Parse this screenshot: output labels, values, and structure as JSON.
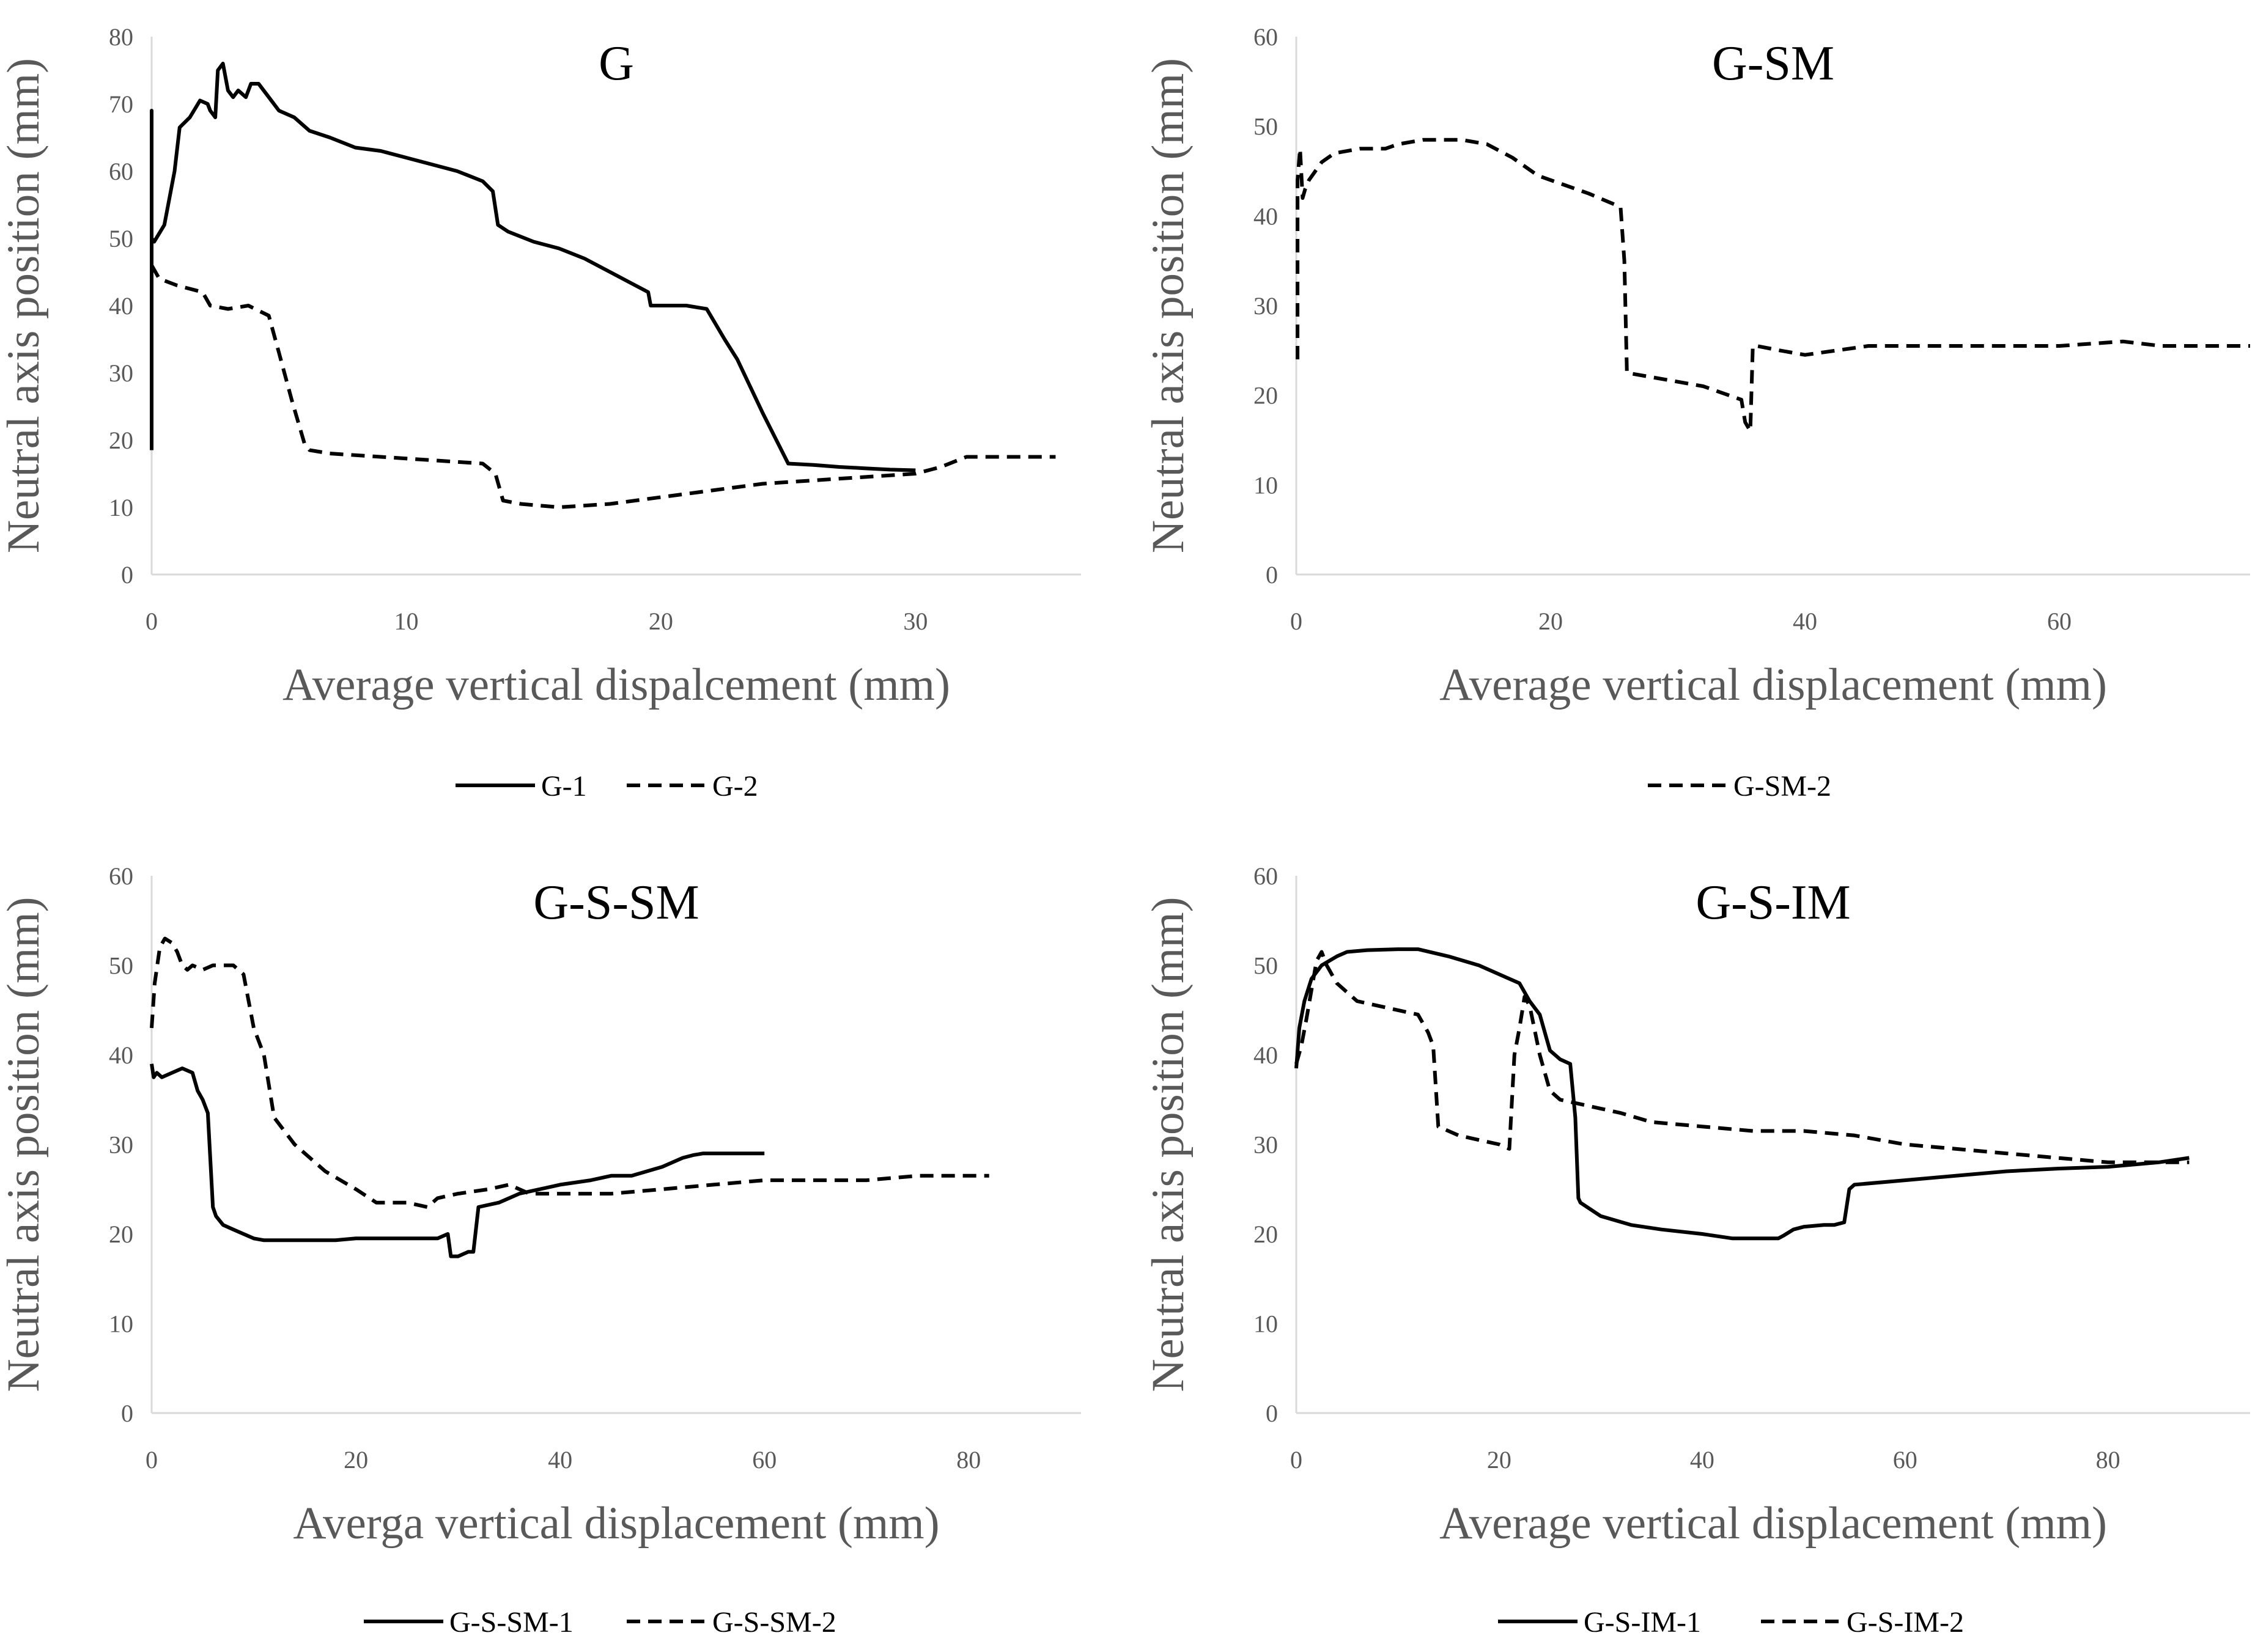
{
  "chart_data": [
    {
      "type": "line",
      "title": "G",
      "xlabel": "Average vertical dispalcement (mm)",
      "ylabel": "Neutral axis position (mm)",
      "xlim": [
        0,
        36.5
      ],
      "ylim": [
        0,
        80
      ],
      "xticks": [
        0,
        10,
        20,
        30
      ],
      "yticks": [
        0,
        10,
        20,
        30,
        40,
        50,
        60,
        70,
        80
      ],
      "grid": false,
      "legend": "bottom",
      "series": [
        {
          "name": "G-1",
          "style": "solid",
          "x": [
            0,
            0,
            0,
            0.1,
            0.5,
            0.9,
            1.1,
            1.5,
            1.9,
            2.2,
            2.3,
            2.5,
            2.6,
            2.8,
            3.0,
            3.2,
            3.4,
            3.7,
            3.9,
            4.2,
            4.6,
            5.0,
            5.6,
            6.2,
            7.0,
            8.0,
            9.0,
            10.0,
            11.0,
            12.0,
            13.0,
            13.4,
            13.6,
            14.0,
            15.0,
            16.0,
            17.0,
            18.0,
            19.0,
            19.5,
            19.6,
            20.0,
            21.0,
            21.8,
            22.5,
            23.0,
            24.0,
            25.0,
            26.0,
            27.0,
            28.0,
            29.0,
            30.0
          ],
          "y": [
            18.5,
            69,
            50,
            49.5,
            52,
            60,
            66.5,
            68,
            70.5,
            70,
            69,
            68,
            75,
            76,
            72,
            71,
            72,
            71,
            73,
            73,
            71,
            69,
            68,
            66,
            65,
            63.5,
            63,
            62,
            61,
            60,
            58.5,
            57,
            52,
            51,
            49.5,
            48.5,
            47,
            45,
            43,
            42,
            40,
            40,
            40,
            39.5,
            35,
            32,
            24,
            16.5,
            16.3,
            16,
            15.8,
            15.6,
            15.5
          ]
        },
        {
          "name": "G-2",
          "style": "dashed",
          "x": [
            0,
            0.3,
            1,
            2,
            2.3,
            3,
            3.8,
            4.6,
            5.0,
            5.5,
            6.0,
            6.2,
            7,
            9,
            11,
            13,
            13.5,
            13.8,
            14.5,
            16,
            18,
            20,
            22,
            24,
            26,
            28,
            30,
            31,
            32,
            35.5
          ],
          "y": [
            46,
            44,
            43,
            42,
            40,
            39.5,
            40,
            38.5,
            33,
            26,
            19.5,
            18.5,
            18,
            17.5,
            17,
            16.5,
            15,
            11,
            10.5,
            10,
            10.5,
            11.5,
            12.5,
            13.5,
            14,
            14.5,
            15,
            16,
            17.5,
            17.5
          ]
        }
      ]
    },
    {
      "type": "line",
      "title": "G-SM",
      "xlabel": "Average vertical displacement (mm)",
      "ylabel": "Neutral axis position (mm)",
      "xlim": [
        0,
        75
      ],
      "ylim": [
        0,
        60
      ],
      "xticks": [
        0,
        20,
        40,
        60
      ],
      "yticks": [
        0,
        10,
        20,
        30,
        40,
        50,
        60
      ],
      "grid": false,
      "legend": "bottom",
      "series": [
        {
          "name": "G-SM-2",
          "style": "dashed",
          "x": [
            0.1,
            0.1,
            0.3,
            0.5,
            0.7,
            1,
            2,
            3,
            5,
            7,
            8,
            10,
            13,
            15,
            17,
            19,
            21,
            23,
            25.5,
            25.8,
            26,
            28,
            32,
            35,
            35.3,
            35.7,
            35.9,
            36.2,
            38,
            40,
            45,
            50,
            55,
            60,
            65,
            68,
            75
          ],
          "y": [
            24,
            44,
            47.5,
            42,
            43,
            44,
            46,
            47,
            47.5,
            47.5,
            48,
            48.5,
            48.5,
            48,
            46.5,
            44.5,
            43.5,
            42.5,
            41,
            35,
            22.5,
            22,
            21,
            19.5,
            17,
            16,
            25.5,
            25.5,
            25,
            24.5,
            25.5,
            25.5,
            25.5,
            25.5,
            26,
            25.5,
            25.5
          ]
        }
      ]
    },
    {
      "type": "line",
      "title": "G-S-SM",
      "xlabel": "Averga vertical displacement (mm)",
      "ylabel": "Neutral axis position (mm)",
      "xlim": [
        0,
        91
      ],
      "ylim": [
        0,
        60
      ],
      "xticks": [
        0,
        20,
        40,
        60,
        80
      ],
      "yticks": [
        0,
        10,
        20,
        30,
        40,
        50,
        60
      ],
      "grid": false,
      "legend": "bottom",
      "series": [
        {
          "name": "G-S-SM-1",
          "style": "solid",
          "x": [
            0,
            0.2,
            0.5,
            1,
            2,
            3,
            4,
            4.5,
            5,
            5.5,
            6,
            6.3,
            7,
            8,
            9,
            10,
            11,
            12,
            15,
            18,
            20,
            25,
            28,
            29,
            29.3,
            30,
            31,
            31.5,
            32,
            34,
            36,
            38,
            40,
            43,
            45,
            47,
            50,
            52,
            53,
            54,
            56,
            58,
            60
          ],
          "y": [
            39,
            37.5,
            38,
            37.5,
            38,
            38.5,
            38,
            36,
            35,
            33.5,
            23,
            22,
            21,
            20.5,
            20,
            19.5,
            19.3,
            19.3,
            19.3,
            19.3,
            19.5,
            19.5,
            19.5,
            20,
            17.5,
            17.5,
            18,
            18,
            23,
            23.5,
            24.5,
            25,
            25.5,
            26,
            26.5,
            26.5,
            27.5,
            28.5,
            28.8,
            29,
            29,
            29,
            29
          ]
        },
        {
          "name": "G-S-SM-2",
          "style": "dashed",
          "x": [
            0,
            0.3,
            0.8,
            1.3,
            2,
            2.5,
            3,
            3.5,
            4,
            5,
            6,
            8,
            9,
            10,
            11,
            12,
            14,
            17,
            20,
            22,
            25,
            27,
            28,
            30,
            33,
            35,
            37,
            40,
            45,
            50,
            55,
            60,
            65,
            70,
            75,
            80,
            82
          ],
          "y": [
            43,
            48,
            52,
            53,
            52.5,
            51.5,
            50,
            49.5,
            50,
            49.5,
            50,
            50,
            49,
            43,
            40,
            33,
            30,
            27,
            25,
            23.5,
            23.5,
            23,
            24,
            24.5,
            25,
            25.5,
            24.5,
            24.5,
            24.5,
            25,
            25.5,
            26,
            26,
            26,
            26.5,
            26.5,
            26.5
          ]
        }
      ]
    },
    {
      "type": "line",
      "title": "G-S-IM",
      "xlabel": "Average vertical displacement (mm)",
      "ylabel": "Neutral axis position (mm)",
      "xlim": [
        0,
        94
      ],
      "ylim": [
        0,
        60
      ],
      "xticks": [
        0,
        20,
        40,
        60,
        80
      ],
      "yticks": [
        0,
        10,
        20,
        30,
        40,
        50,
        60
      ],
      "grid": false,
      "legend": "bottom",
      "series": [
        {
          "name": "G-S-IM-1",
          "style": "solid",
          "x": [
            0,
            0.3,
            0.8,
            1.5,
            2.5,
            4,
            5,
            7,
            10,
            12,
            15,
            18,
            21,
            22,
            23,
            24,
            25,
            26,
            27,
            27.5,
            27.8,
            28,
            30,
            33,
            36,
            40,
            43,
            46,
            47.5,
            48,
            49,
            50,
            52,
            53,
            54,
            54.5,
            55,
            60,
            65,
            70,
            75,
            80,
            85,
            88
          ],
          "y": [
            38.5,
            43,
            46,
            48.5,
            50,
            51,
            51.5,
            51.7,
            51.8,
            51.8,
            51,
            50,
            48.5,
            48,
            46,
            44.5,
            40.5,
            39.5,
            39,
            33,
            24,
            23.5,
            22,
            21,
            20.5,
            20,
            19.5,
            19.5,
            19.5,
            19.8,
            20.5,
            20.8,
            21,
            21,
            21.3,
            25,
            25.5,
            26,
            26.5,
            27,
            27.3,
            27.5,
            28,
            28.5
          ]
        },
        {
          "name": "G-S-IM-2",
          "style": "dashed",
          "x": [
            0,
            0.5,
            1,
            2,
            2.5,
            3,
            4,
            6,
            8,
            10,
            12,
            13,
            13.5,
            14,
            16,
            18,
            20,
            21,
            21.5,
            22,
            22.5,
            23,
            24,
            25,
            26,
            28,
            30,
            32,
            35,
            40,
            45,
            50,
            55,
            60,
            65,
            70,
            75,
            80,
            85,
            88
          ],
          "y": [
            39,
            41,
            44,
            50.5,
            51.5,
            50,
            48,
            46,
            45.5,
            45,
            44.5,
            42.5,
            41,
            32,
            31,
            30.5,
            30,
            29.5,
            40,
            43,
            46.5,
            45.5,
            40,
            36,
            35,
            34.5,
            34,
            33.5,
            32.5,
            32,
            31.5,
            31.5,
            31,
            30,
            29.5,
            29,
            28.5,
            28,
            28,
            28
          ]
        }
      ]
    }
  ]
}
